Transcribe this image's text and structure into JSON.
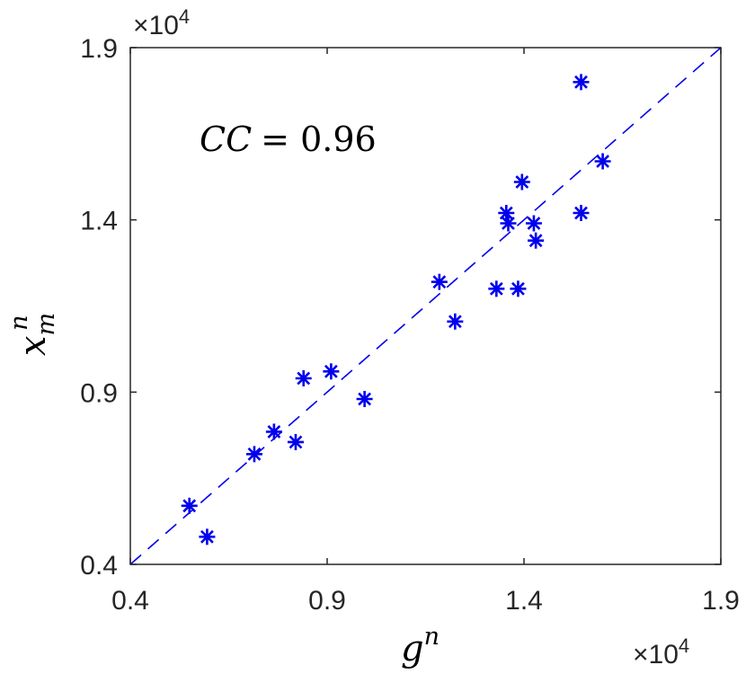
{
  "chart_data": {
    "type": "scatter",
    "title": "",
    "xlabel": {
      "base": "g",
      "sup": "n"
    },
    "ylabel": {
      "base": "x",
      "sup": "n",
      "sub": "m"
    },
    "xlim": [
      4000,
      19000
    ],
    "ylim": [
      4000,
      19000
    ],
    "x_ticks": [
      4000,
      9000,
      14000,
      19000
    ],
    "y_ticks": [
      4000,
      9000,
      14000,
      19000
    ],
    "x_tick_labels": [
      "0.4",
      "0.9",
      "1.4",
      "1.9"
    ],
    "y_tick_labels": [
      "0.4",
      "0.9",
      "1.4",
      "1.9"
    ],
    "x_exponent": {
      "times": "×10",
      "power": "4"
    },
    "y_exponent": {
      "times": "×10",
      "power": "4"
    },
    "grid": false,
    "annotation": {
      "lhs": "CC",
      "eq": "= 0.96"
    },
    "marker": "asterisk",
    "color": "#0000ee",
    "reference_line": {
      "style": "dashed",
      "from": [
        4000,
        4000
      ],
      "to": [
        19000,
        19000
      ]
    },
    "series": [
      {
        "points": [
          [
            5500,
            5700
          ],
          [
            5950,
            4800
          ],
          [
            7150,
            7200
          ],
          [
            7650,
            7850
          ],
          [
            8200,
            7550
          ],
          [
            8400,
            9400
          ],
          [
            9100,
            9600
          ],
          [
            9950,
            8800
          ],
          [
            11850,
            12200
          ],
          [
            12250,
            11050
          ],
          [
            13300,
            12000
          ],
          [
            13550,
            14200
          ],
          [
            13600,
            13900
          ],
          [
            13850,
            12000
          ],
          [
            13950,
            15100
          ],
          [
            14250,
            13900
          ],
          [
            14300,
            13400
          ],
          [
            15450,
            18000
          ],
          [
            15450,
            14200
          ],
          [
            16000,
            15700
          ]
        ]
      }
    ]
  }
}
